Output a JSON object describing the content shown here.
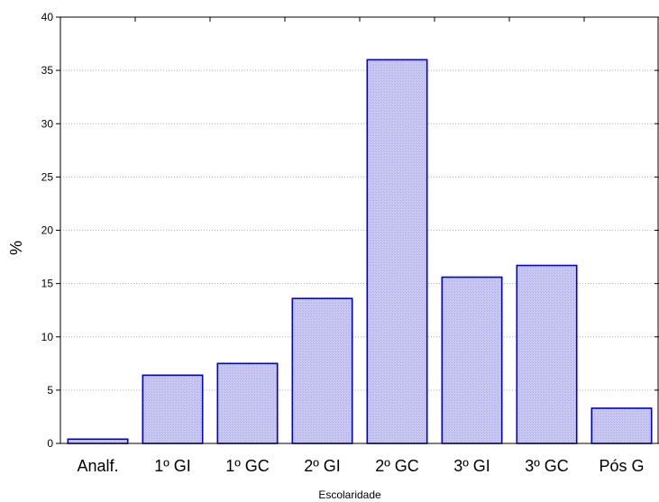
{
  "chart_data": {
    "type": "bar",
    "categories": [
      "Analf.",
      "1º GI",
      "1º GC",
      "2º GI",
      "2º GC",
      "3º GI",
      "3º GC",
      "Pós G"
    ],
    "values": [
      0.4,
      6.4,
      7.5,
      13.6,
      36.0,
      15.6,
      16.7,
      3.3
    ],
    "title": "",
    "xlabel": "Escolaridade",
    "ylabel": "%",
    "ylim": [
      0,
      40
    ],
    "yticks": [
      0,
      5,
      10,
      15,
      20,
      25,
      30,
      35,
      40
    ],
    "grid": true,
    "bar_fill": "#c8c8f0",
    "bar_stroke": "#0000cc"
  }
}
